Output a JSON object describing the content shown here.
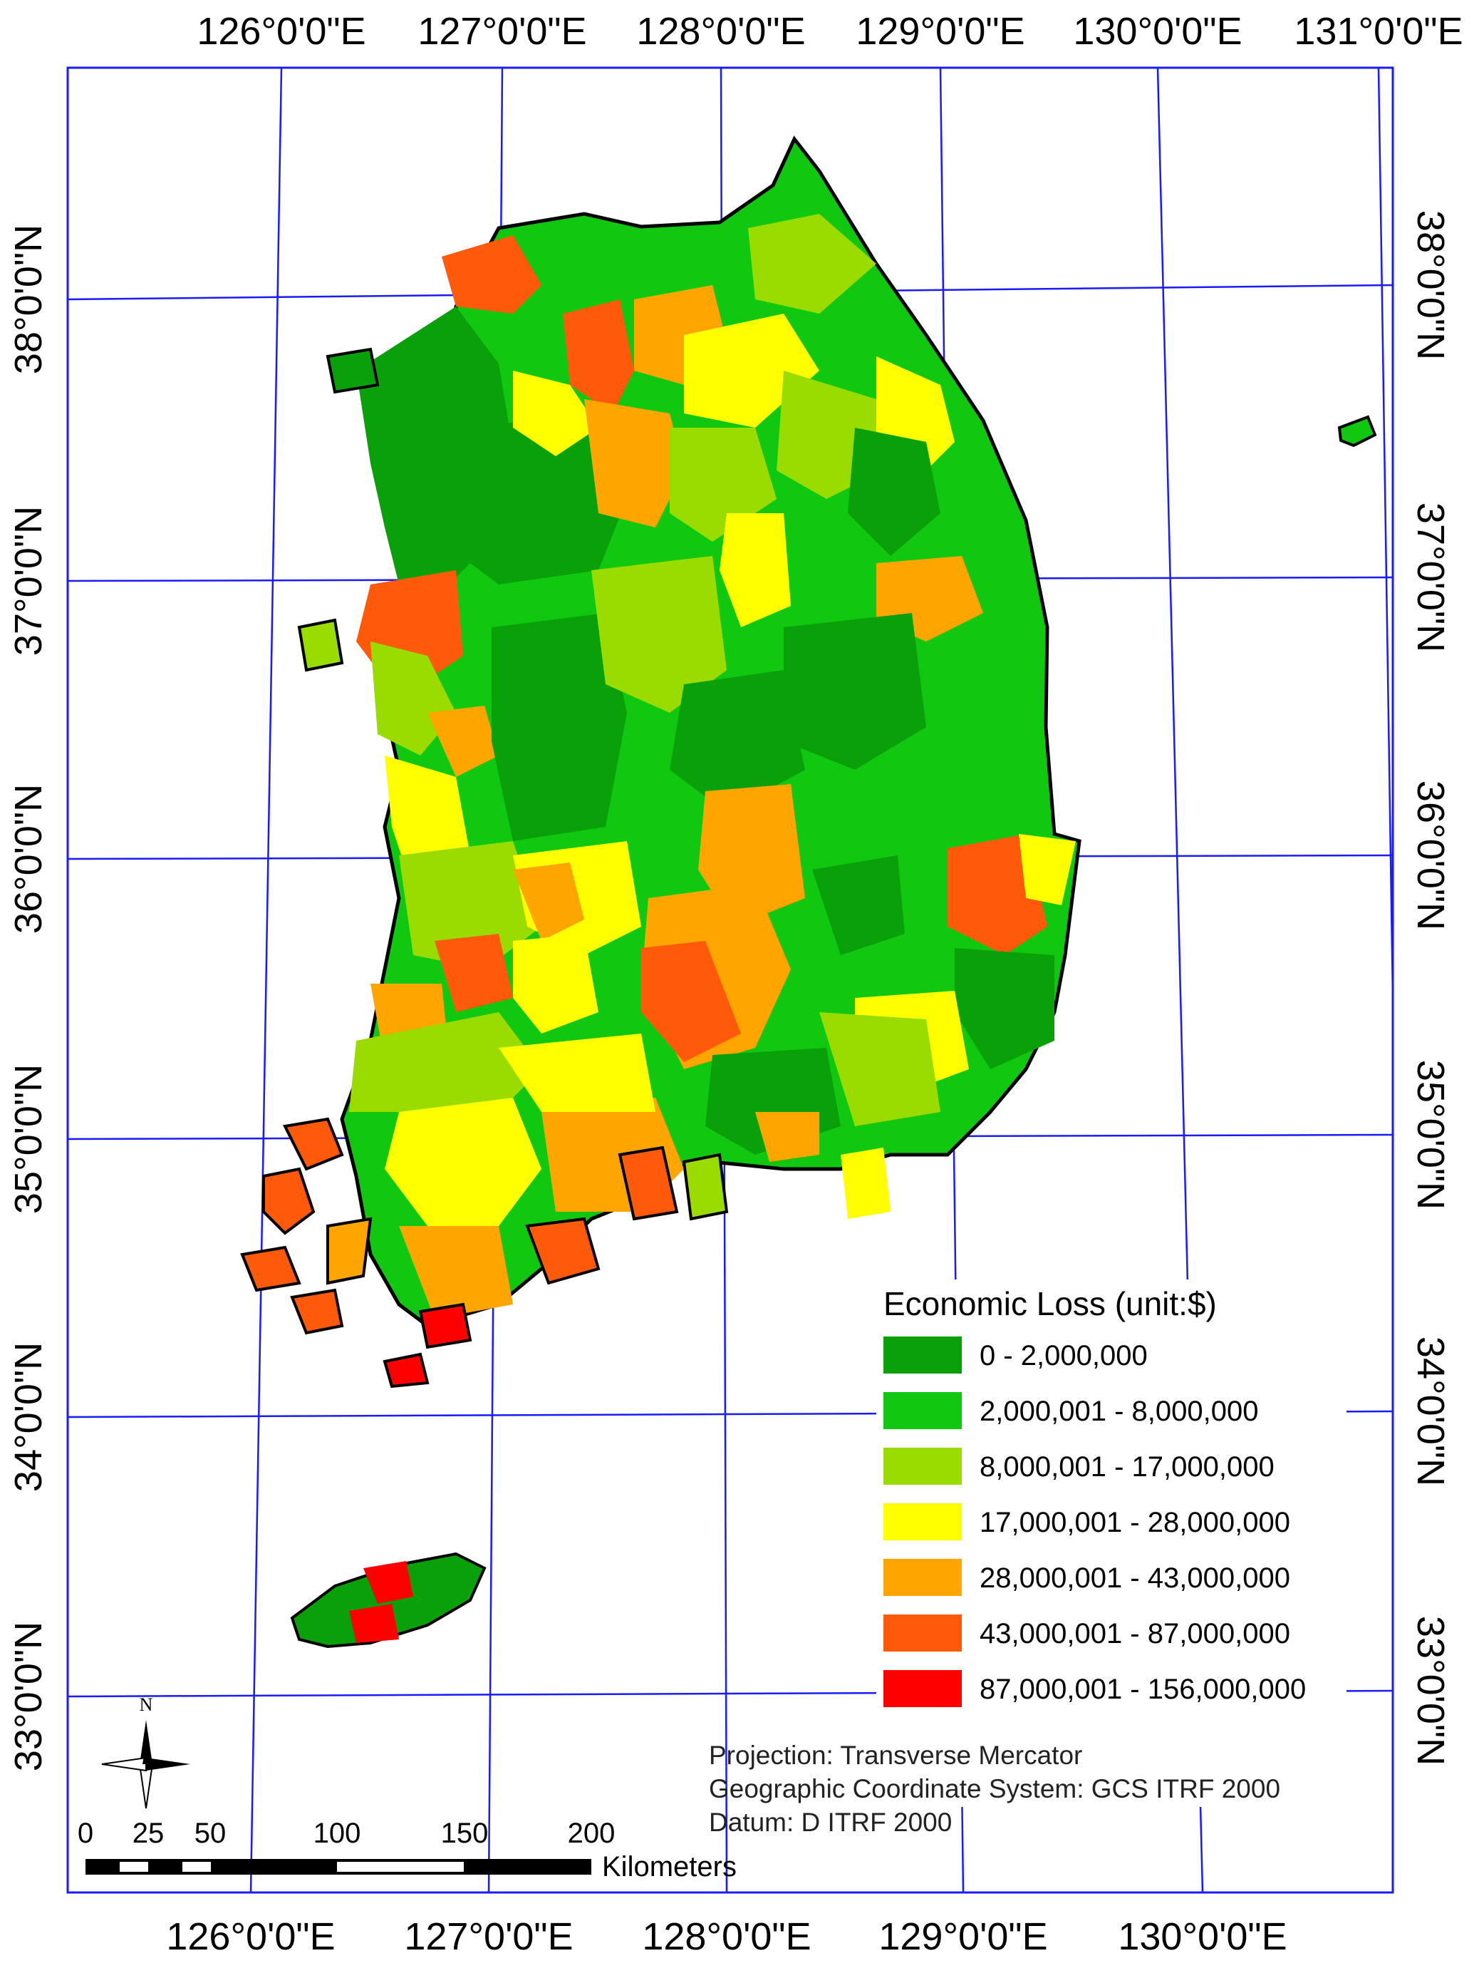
{
  "graticule": {
    "top_labels": [
      "126°0'0\"E",
      "127°0'0\"E",
      "128°0'0\"E",
      "129°0'0\"E",
      "130°0'0\"E",
      "131°0'0\"E"
    ],
    "bottom_labels": [
      "126°0'0\"E",
      "127°0'0\"E",
      "128°0'0\"E",
      "129°0'0\"E",
      "130°0'0\"E"
    ],
    "left_labels": [
      "38°0'0\"N",
      "37°0'0\"N",
      "36°0'0\"N",
      "35°0'0\"N",
      "34°0'0\"N",
      "33°0'0\"N"
    ],
    "right_labels": [
      "38°0'0\"N",
      "37°0'0\"N",
      "36°0'0\"N",
      "35°0'0\"N",
      "34°0'0\"N",
      "33°0'0\"N"
    ],
    "line_color": "#1a1aff"
  },
  "legend": {
    "title": "Economic Loss (unit:$)",
    "items": [
      {
        "label": "0 - 2,000,000",
        "color": "#0aa00a"
      },
      {
        "label": "2,000,001 - 8,000,000",
        "color": "#10c810"
      },
      {
        "label": "8,000,001 - 17,000,000",
        "color": "#9bdc00"
      },
      {
        "label": "17,000,001 - 28,000,000",
        "color": "#ffff00"
      },
      {
        "label": "28,000,001 - 43,000,000",
        "color": "#ffa500"
      },
      {
        "label": "43,000,001 - 87,000,000",
        "color": "#ff5a0a"
      },
      {
        "label": "87,000,001 - 156,000,000",
        "color": "#ff0000"
      }
    ]
  },
  "projection_info": {
    "line1": "Projection: Transverse Mercator",
    "line2": "Geographic Coordinate System: GCS ITRF 2000",
    "line3": "Datum: D ITRF 2000"
  },
  "scale_bar": {
    "ticks": [
      "0",
      "25",
      "50",
      "100",
      "150",
      "200"
    ],
    "unit": "Kilometers"
  },
  "north_arrow": {
    "label": "N"
  }
}
